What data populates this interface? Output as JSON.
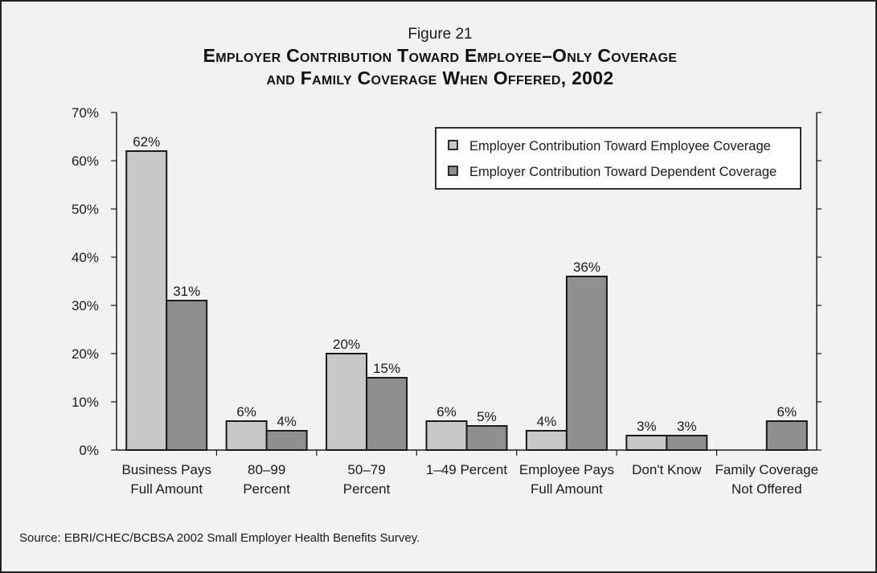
{
  "figure": {
    "label": "Figure 21",
    "title_line1": "Employer Contribution Toward Employee–Only Coverage",
    "title_line2": "and Family Coverage When Offered, 2002",
    "source": "Source: EBRI/CHEC/BCBSA 2002 Small Employer Health Benefits Survey."
  },
  "colors": {
    "background": "#f2f2f2",
    "employee": "#c8c8c8",
    "dependent": "#8f8f8f",
    "outline": "#1a1a1a"
  },
  "chart_data": {
    "type": "bar",
    "title": "Employer Contribution Toward Employee–Only Coverage and Family Coverage When Offered, 2002",
    "xlabel": "",
    "ylabel": "",
    "ylim": [
      0,
      70
    ],
    "yticks": [
      0,
      10,
      20,
      30,
      40,
      50,
      60,
      70
    ],
    "ytick_labels": [
      "0%",
      "10%",
      "20%",
      "30%",
      "40%",
      "50%",
      "60%",
      "70%"
    ],
    "grid": false,
    "legend_position": "top-right",
    "categories": [
      [
        "Business Pays",
        "Full Amount"
      ],
      [
        "80–99",
        "Percent"
      ],
      [
        "50–79",
        "Percent"
      ],
      [
        "1–49 Percent"
      ],
      [
        "Employee Pays",
        "Full Amount"
      ],
      [
        "Don't Know"
      ],
      [
        "Family Coverage",
        "Not Offered"
      ]
    ],
    "series": [
      {
        "name": "Employer Contribution Toward Employee Coverage",
        "values": [
          62,
          6,
          20,
          6,
          4,
          3,
          null
        ],
        "labels": [
          "62%",
          "6%",
          "20%",
          "6%",
          "4%",
          "3%",
          null
        ]
      },
      {
        "name": "Employer Contribution Toward Dependent Coverage",
        "values": [
          31,
          4,
          15,
          5,
          36,
          3,
          6
        ],
        "labels": [
          "31%",
          "4%",
          "15%",
          "5%",
          "36%",
          "3%",
          "6%"
        ]
      }
    ]
  }
}
